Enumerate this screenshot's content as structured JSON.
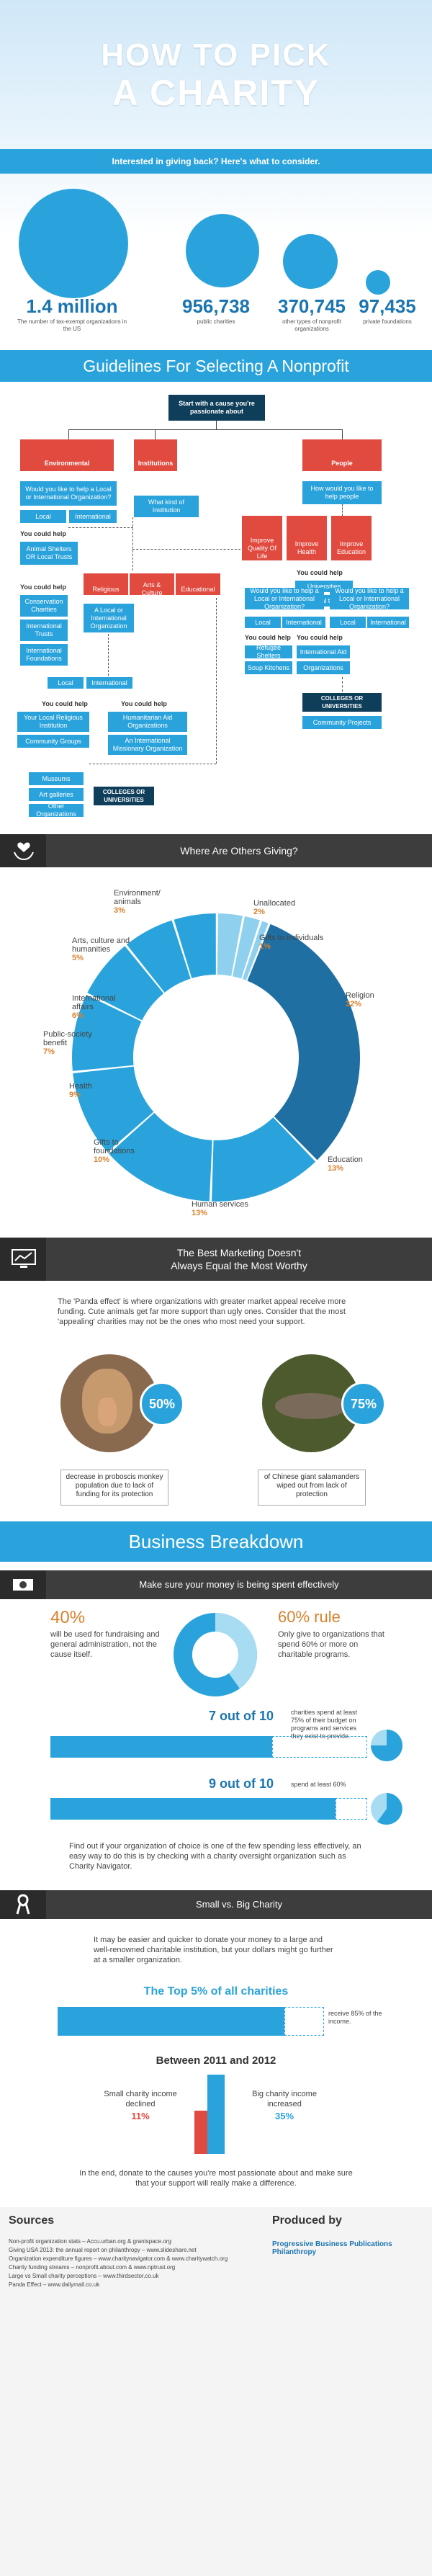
{
  "header": {
    "title_line1": "HOW TO PICK",
    "title_line2": "A CHARITY",
    "subtitle": "Interested in giving back?  Here's what to consider."
  },
  "stats": [
    {
      "value": "1.4 million",
      "label": "The number of tax-exempt organizations in the US"
    },
    {
      "value": "956,738",
      "label": "public charities"
    },
    {
      "value": "370,745",
      "label": "other types of nonprofit organizations"
    },
    {
      "value": "97,435",
      "label": "private foundations"
    }
  ],
  "guidelines": {
    "title": "Guidelines For Selecting A Nonprofit",
    "start": "Start with a cause you're passionate about",
    "environmental": "Environmental",
    "institutions": "Institutions",
    "people": "People",
    "env_q": "Would you like to help a Local or International Organization?",
    "local": "Local",
    "international": "International",
    "what_kind": "What kind of Institution",
    "people_q": "How would you like to help people",
    "you_could_help": "You could help",
    "animal_shelters": "Animal Shelters OR Local Trusts",
    "conservation": "Conservation Charities",
    "intl_trusts": "International Trusts",
    "intl_foundations": "International Foundations",
    "religious": "Religious",
    "arts_culture": "Arts & Culture",
    "educational": "Educational",
    "improve_quality": "Improve Quality Of Life",
    "improve_health": "Improve Health",
    "improve_education": "Improve Education",
    "universities": "Universities",
    "medical_trusts": "Medical trusts",
    "local_or_intl_org": "A Local or International Organization",
    "would_help_1": "Would you like to help a Local or International Organization?",
    "would_help_2": "Would you like to help a Local or International Organization?",
    "refugee": "Refugee Shelters",
    "soup": "Soup Kitchens",
    "intl_aid": "International Aid",
    "organizations": "Organizations",
    "colleges1": "COLLEGES OR UNIVERSITIES",
    "community_projects": "Community Projects",
    "local_religious": "Your Local Religious Institution",
    "community_groups": "Community Groups",
    "humanitarian": "Humanitarian Aid Organizations",
    "intl_missionary": "An International Missionary Organization",
    "museums": "Museums",
    "art_galleries": "Art galleries",
    "other_orgs": "Other Organizations",
    "colleges2": "COLLEGES OR UNIVERSITIES"
  },
  "giving": {
    "title": "Where Are Others Giving?",
    "slices": [
      {
        "name": "Religion",
        "pct": 32,
        "label": "32%"
      },
      {
        "name": "Education",
        "pct": 13,
        "label": "13%"
      },
      {
        "name": "Human services",
        "pct": 13,
        "label": "13%"
      },
      {
        "name": "Gifts to foundations",
        "pct": 10,
        "label": "10%"
      },
      {
        "name": "Health",
        "pct": 9,
        "label": "9%"
      },
      {
        "name": "Public-society benefit",
        "pct": 7,
        "label": "7%"
      },
      {
        "name": "International affairs",
        "pct": 6,
        "label": "6%"
      },
      {
        "name": "Arts, culture and humanities",
        "pct": 5,
        "label": "5%"
      },
      {
        "name": "Environment/ animals",
        "pct": 3,
        "label": "3%"
      },
      {
        "name": "Unallocated",
        "pct": 2,
        "label": "2%"
      },
      {
        "name": "Gifts to individuals",
        "pct": 1,
        "label": "1%"
      }
    ],
    "colors": {
      "religion": "#1f6fa3",
      "main": "#2aa3dc",
      "light": "#8fd0ee"
    }
  },
  "marketing": {
    "title_l1": "The Best Marketing Doesn't",
    "title_l2": "Always Equal the Most Worthy",
    "panda_text": "The 'Panda effect' is where organizations with greater market appeal receive more funding. Cute animals get far more support than ugly ones. Consider that the most 'appealing' charities may not be the ones who most need your support.",
    "monkey_pct": "50%",
    "monkey_txt": "decrease in proboscis monkey population due to lack of funding for its protection",
    "salamander_pct": "75%",
    "salamander_txt": "of Chinese giant salamanders wiped out from lack of protection"
  },
  "business": {
    "title": "Business Breakdown",
    "effective": "Make sure your money is being spent effectively",
    "forty": "40%",
    "forty_txt": "will be used for fundraising and general administration, not the cause itself.",
    "sixty": "60% rule",
    "sixty_txt": "Only give to organizations that spend 60% or more on charitable programs.",
    "seven_title": "7 out of 10",
    "seven_txt": "charities spend at least 75% of their budget on programs and services they exist to provide.",
    "nine_title": "9 out of 10",
    "nine_txt": "spend at least 60%",
    "find_out": "Find out if your organization of choice is one of the few spending less effectively, an easy way to do this is by checking with a charity oversight organization such as Charity Navigator.",
    "small_big": "Small vs. Big Charity",
    "easier": "It may be easier and quicker to donate your money to a large and well-renowned charitable institution, but your dollars might go further at a smaller organization.",
    "top5": "The Top 5% of all charities",
    "top5_rec": "receive 85% of the income.",
    "between": "Between 2011 and 2012",
    "small_decl": "Small charity income declined",
    "small_pct": "11%",
    "big_inc": "Big charity income increased",
    "big_pct": "35%",
    "end": "In the end, donate to the causes you're most passionate about and make sure that your support will really make a difference."
  },
  "footer": {
    "sources": "Sources",
    "produced": "Produced by",
    "lines": [
      "Non-profit organization stats – Accu.urban.org & grantspace.org",
      "Giving USA 2013: the annual report on philanthropy – www.slideshare.net",
      "Organization expenditure figures – www.charitynavigator.com & www.charitywatch.org",
      "Charity funding streams – nonprofit.about.com & www.nptrust.org",
      "Large vs Small charity perceptions – www.thirdsector.co.uk",
      "Panda Effect – www.dailymail.co.uk"
    ],
    "brand": "Progressive Business Publications Philanthropy"
  }
}
